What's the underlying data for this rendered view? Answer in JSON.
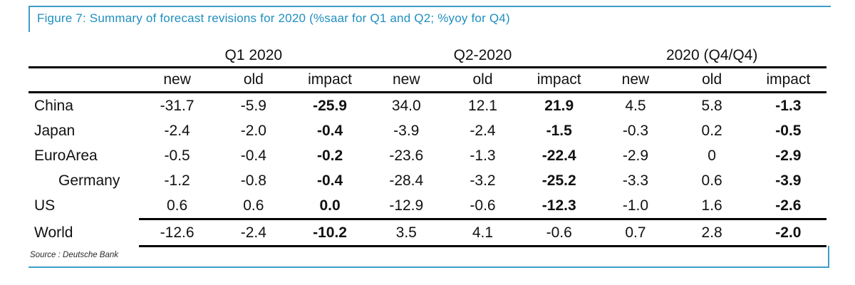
{
  "title": "Figure 7: Summary of forecast revisions for 2020 (%saar for Q1 and Q2; %yoy for Q4)",
  "source": "Source : Deutsche Bank",
  "colors": {
    "title_blue": "#1f8fc0",
    "frame_blue": "#3e9ec6",
    "rule_black": "#000000",
    "text": "#111111",
    "background": "#ffffff"
  },
  "table": {
    "groups": [
      {
        "label": "Q1 2020"
      },
      {
        "label": "Q2-2020"
      },
      {
        "label": "2020 (Q4/Q4)"
      }
    ],
    "columns": [
      "new",
      "old",
      "impact",
      "new",
      "old",
      "impact",
      "new",
      "old",
      "impact"
    ],
    "rows": [
      {
        "label": "China",
        "indent": false,
        "rule_below": false,
        "values": [
          "-31.7",
          "-5.9",
          "-25.9",
          "34.0",
          "12.1",
          "21.9",
          "4.5",
          "5.8",
          "-1.3"
        ],
        "bold": [
          2,
          5,
          8
        ]
      },
      {
        "label": "Japan",
        "indent": false,
        "rule_below": false,
        "values": [
          "-2.4",
          "-2.0",
          "-0.4",
          "-3.9",
          "-2.4",
          "-1.5",
          "-0.3",
          "0.2",
          "-0.5"
        ],
        "bold": [
          2,
          5,
          8
        ]
      },
      {
        "label": "EuroArea",
        "indent": false,
        "rule_below": false,
        "values": [
          "-0.5",
          "-0.4",
          "-0.2",
          "-23.6",
          "-1.3",
          "-22.4",
          "-2.9",
          "0",
          "-2.9"
        ],
        "bold": [
          2,
          5,
          8
        ]
      },
      {
        "label": "Germany",
        "indent": true,
        "rule_below": false,
        "values": [
          "-1.2",
          "-0.8",
          "-0.4",
          "-28.4",
          "-3.2",
          "-25.2",
          "-3.3",
          "0.6",
          "-3.9"
        ],
        "bold": [
          2,
          5,
          8
        ]
      },
      {
        "label": "US",
        "indent": false,
        "rule_below": true,
        "values": [
          "0.6",
          "0.6",
          "0.0",
          "-12.9",
          "-0.6",
          "-12.3",
          "-1.0",
          "1.6",
          "-2.6"
        ],
        "bold": [
          2,
          5,
          8
        ]
      },
      {
        "label": "World",
        "indent": false,
        "rule_below": true,
        "values": [
          "-12.6",
          "-2.4",
          "-10.2",
          "3.5",
          "4.1",
          "-0.6",
          "0.7",
          "2.8",
          "-2.0"
        ],
        "bold": [
          2,
          8
        ]
      }
    ]
  }
}
